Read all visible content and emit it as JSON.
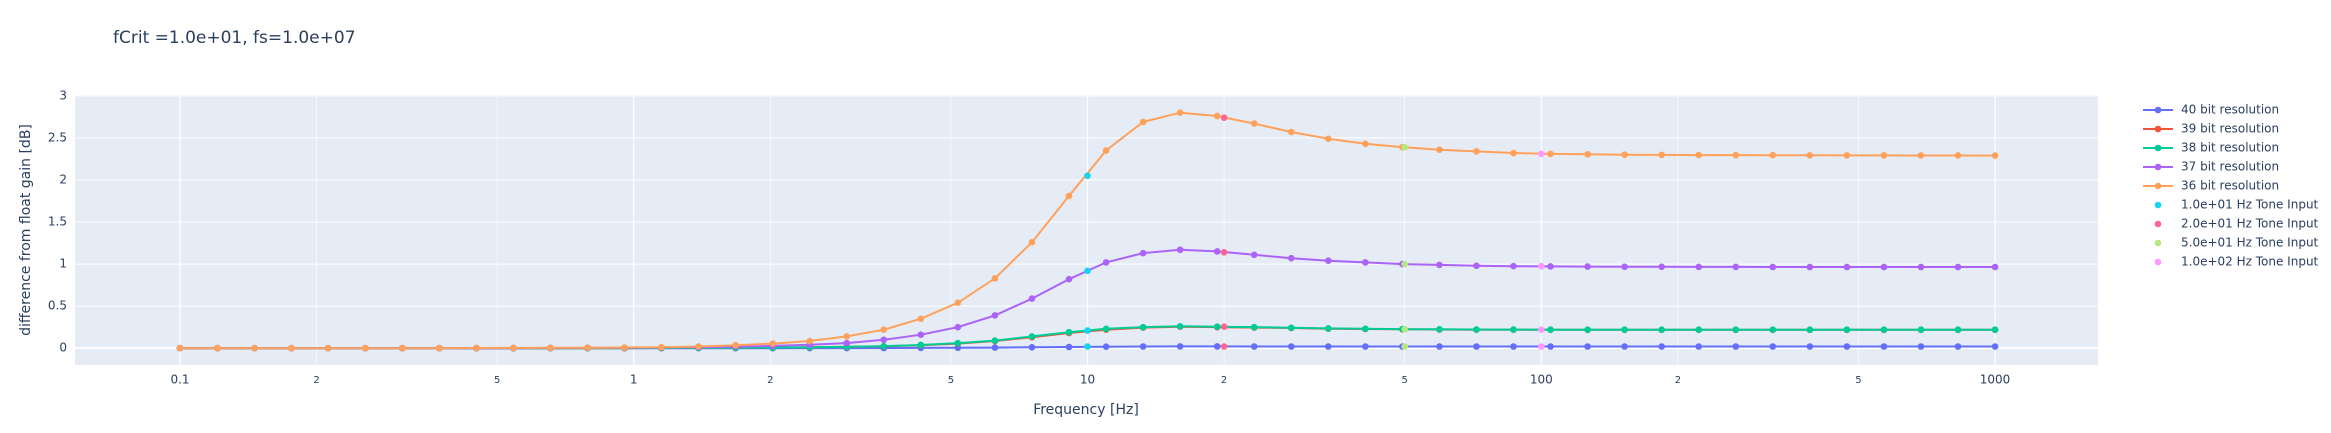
{
  "chart_data": {
    "type": "line",
    "title": "fCrit =1.0e+01, fs=1.0e+07",
    "x_label": "Frequency [Hz]",
    "y_label": "difference from float gain [dB]",
    "log_x": true,
    "grid": true,
    "legend": "right",
    "xlim": [
      0.0587,
      1686
    ],
    "ylim": [
      -0.2,
      3.01
    ],
    "xticks": [
      0.1,
      {
        "value": 0.2,
        "label": "2"
      },
      {
        "value": 0.5,
        "label": "5"
      },
      1,
      {
        "value": 2,
        "label": "2"
      },
      {
        "value": 5,
        "label": "5"
      },
      10,
      {
        "value": 20,
        "label": "2"
      },
      {
        "value": 50,
        "label": "5"
      },
      100,
      {
        "value": 200,
        "label": "2"
      },
      {
        "value": 500,
        "label": "5"
      },
      1000
    ],
    "yticks": [
      0,
      0.5,
      1,
      1.5,
      2,
      2.5,
      3
    ],
    "x": [
      0.1,
      0.121,
      0.146,
      0.176,
      0.212,
      0.256,
      0.309,
      0.373,
      0.45,
      0.543,
      0.655,
      0.791,
      0.954,
      1.151,
      1.389,
      1.677,
      2.024,
      2.442,
      2.947,
      3.556,
      4.292,
      5.179,
      6.251,
      7.543,
      9.103,
      10.99,
      13.26,
      16.0,
      19.31,
      23.3,
      28.12,
      33.93,
      40.95,
      49.42,
      59.64,
      71.97,
      86.85,
      104.8,
      126.5,
      152.6,
      184.2,
      222.3,
      268.3,
      323.7,
      390.7,
      471.5,
      569.0,
      686.6,
      828.6,
      1000
    ],
    "series": [
      {
        "name": "40 bit resolution",
        "color": "#636efa",
        "mode": "lines+markers",
        "values": [
          0,
          0,
          0,
          0,
          0,
          0,
          0,
          0,
          0,
          0,
          0,
          0,
          0,
          0,
          0,
          0,
          0,
          0.001,
          0.001,
          0.002,
          0.003,
          0.005,
          0.007,
          0.01,
          0.014,
          0.018,
          0.02,
          0.021,
          0.021,
          0.02,
          0.02,
          0.02,
          0.02,
          0.02,
          0.02,
          0.02,
          0.02,
          0.02,
          0.02,
          0.02,
          0.02,
          0.02,
          0.02,
          0.02,
          0.02,
          0.02,
          0.02,
          0.02,
          0.02,
          0.02
        ]
      },
      {
        "name": "39 bit resolution",
        "color": "#EF553B",
        "mode": "lines+markers",
        "values": [
          0,
          0,
          0,
          0,
          0,
          0,
          0,
          0,
          0,
          0,
          0,
          0,
          0.001,
          0.002,
          0.003,
          0.005,
          0.007,
          0.01,
          0.015,
          0.022,
          0.035,
          0.055,
          0.085,
          0.13,
          0.18,
          0.22,
          0.245,
          0.255,
          0.25,
          0.245,
          0.24,
          0.232,
          0.228,
          0.224,
          0.222,
          0.22,
          0.22,
          0.22,
          0.218,
          0.218,
          0.218,
          0.218,
          0.218,
          0.218,
          0.218,
          0.218,
          0.218,
          0.218,
          0.218,
          0.218
        ]
      },
      {
        "name": "38 bit resolution",
        "color": "#00cc96",
        "mode": "lines+markers",
        "values": [
          0,
          0,
          0,
          0,
          0,
          0,
          0,
          0,
          0,
          0,
          0,
          0,
          0.001,
          0.002,
          0.003,
          0.005,
          0.007,
          0.01,
          0.016,
          0.024,
          0.038,
          0.06,
          0.09,
          0.14,
          0.19,
          0.23,
          0.25,
          0.26,
          0.255,
          0.25,
          0.242,
          0.235,
          0.23,
          0.226,
          0.224,
          0.222,
          0.221,
          0.22,
          0.22,
          0.22,
          0.22,
          0.22,
          0.22,
          0.22,
          0.22,
          0.22,
          0.22,
          0.22,
          0.22,
          0.22
        ]
      },
      {
        "name": "37 bit resolution",
        "color": "#ab63fa",
        "mode": "lines+markers",
        "values": [
          0,
          0,
          0,
          0,
          0,
          0,
          0,
          0,
          0,
          0.001,
          0.002,
          0.003,
          0.005,
          0.008,
          0.012,
          0.018,
          0.027,
          0.04,
          0.06,
          0.1,
          0.16,
          0.25,
          0.39,
          0.59,
          0.82,
          1.02,
          1.13,
          1.17,
          1.15,
          1.11,
          1.07,
          1.04,
          1.02,
          1.0,
          0.99,
          0.98,
          0.975,
          0.972,
          0.97,
          0.968,
          0.967,
          0.966,
          0.966,
          0.965,
          0.965,
          0.965,
          0.965,
          0.965,
          0.965,
          0.965
        ]
      },
      {
        "name": "36 bit resolution",
        "color": "#FFA15A",
        "mode": "lines+markers",
        "values": [
          0,
          0,
          0,
          0,
          0,
          0,
          0,
          0,
          0.002,
          0.003,
          0.004,
          0.006,
          0.008,
          0.012,
          0.02,
          0.035,
          0.055,
          0.085,
          0.14,
          0.22,
          0.35,
          0.54,
          0.83,
          1.26,
          1.81,
          2.35,
          2.69,
          2.8,
          2.76,
          2.67,
          2.57,
          2.49,
          2.43,
          2.39,
          2.36,
          2.34,
          2.32,
          2.31,
          2.305,
          2.3,
          2.298,
          2.296,
          2.295,
          2.294,
          2.293,
          2.292,
          2.292,
          2.291,
          2.291,
          2.29
        ]
      },
      {
        "name": "1.0e+01 Hz Tone Input",
        "color": "#19d3f3",
        "mode": "markers",
        "x": [
          10,
          10,
          10,
          10
        ],
        "values": [
          0.02,
          0.21,
          0.92,
          2.05
        ]
      },
      {
        "name": "2.0e+01 Hz Tone Input",
        "color": "#FF6692",
        "mode": "markers",
        "x": [
          20,
          20,
          20,
          20
        ],
        "values": [
          0.02,
          0.255,
          1.14,
          2.74
        ]
      },
      {
        "name": "5.0e+01 Hz Tone Input",
        "color": "#B6E880",
        "mode": "markers",
        "x": [
          50,
          50,
          50,
          50
        ],
        "values": [
          0.02,
          0.225,
          1.0,
          2.39
        ]
      },
      {
        "name": "1.0e+02 Hz Tone Input",
        "color": "#FF97FF",
        "mode": "markers",
        "x": [
          100,
          100,
          100,
          100
        ],
        "values": [
          0.02,
          0.22,
          0.975,
          2.31
        ]
      }
    ]
  }
}
